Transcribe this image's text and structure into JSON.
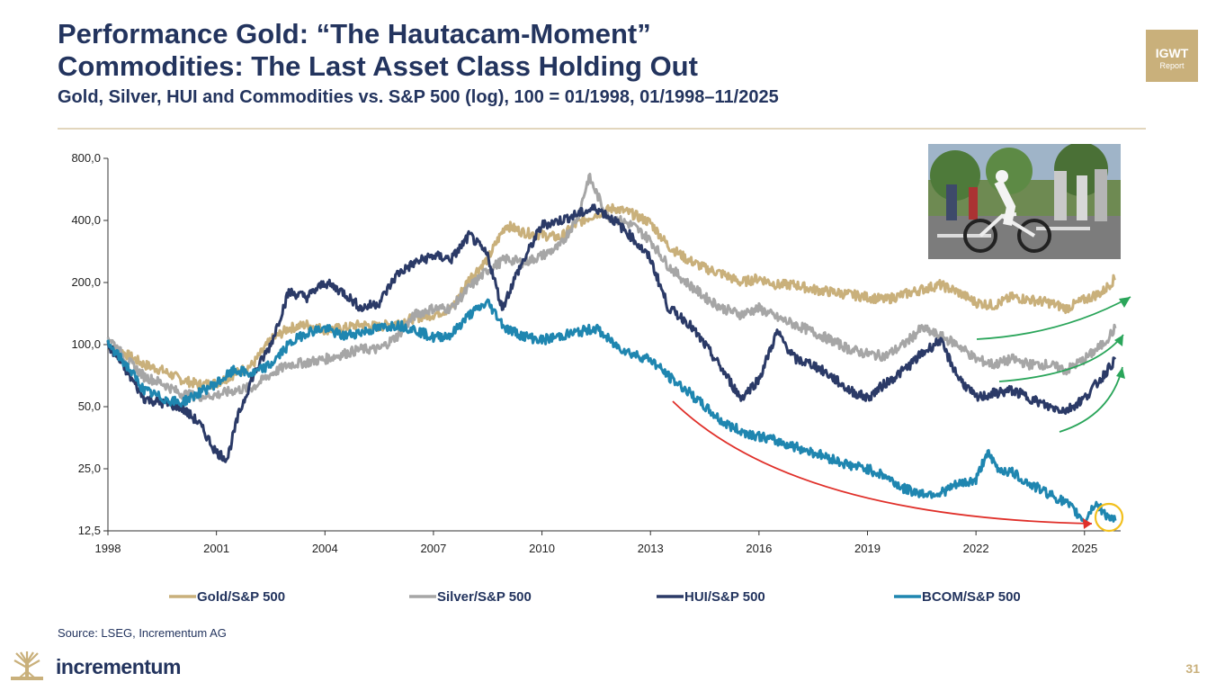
{
  "header": {
    "title_line1": "Performance Gold: “The Hautacam-Moment”",
    "title_line2": "Commodities: The Last Asset Class Holding Out",
    "subtitle": "Gold, Silver, HUI and Commodities vs. S&P 500 (log), 100 = 01/1998, 01/1998–11/2025"
  },
  "badge": {
    "line1": "IGWT",
    "line2": "Report"
  },
  "source": "Source: LSEG, Incrementum AG",
  "logo": {
    "text": "incrementum"
  },
  "page_number": "31",
  "colors": {
    "gold": "#c9b07b",
    "silver": "#a6a6a6",
    "hui": "#2b3a67",
    "bcom": "#1f86b0",
    "navy": "#23345e",
    "red": "#e0302a",
    "green": "#2aa55a",
    "highlight": "#f2c01e"
  },
  "chart_data": {
    "type": "line",
    "title": "Gold, Silver, HUI and Commodities vs. S&P 500 (log), 100 = 01/1998, 01/1998–11/2025",
    "yscale": "log",
    "ylim": [
      12.5,
      800
    ],
    "yticks": [
      12.5,
      25,
      50,
      100,
      200,
      400,
      800
    ],
    "ytick_labels": [
      "12,5",
      "25,0",
      "50,0",
      "100,0",
      "200,0",
      "400,0",
      "800,0"
    ],
    "xlim": [
      1998,
      2026
    ],
    "xticks": [
      1998,
      2001,
      2004,
      2007,
      2010,
      2013,
      2016,
      2019,
      2022,
      2025
    ],
    "xtick_labels": [
      "1998",
      "2001",
      "2004",
      "2007",
      "2010",
      "2013",
      "2016",
      "2019",
      "2022",
      "2025"
    ],
    "legend_position": "bottom",
    "series": [
      {
        "name": "Gold/S&P 500",
        "color": "#c9b07b",
        "x": [
          1998.0,
          1998.5,
          1999.0,
          1999.5,
          2000.0,
          2000.5,
          2001.0,
          2001.5,
          2002.0,
          2002.5,
          2003.0,
          2003.5,
          2004.0,
          2004.5,
          2005.0,
          2005.5,
          2006.0,
          2006.5,
          2007.0,
          2007.5,
          2008.0,
          2008.5,
          2009.0,
          2009.5,
          2010.0,
          2010.5,
          2011.0,
          2011.5,
          2012.0,
          2012.5,
          2013.0,
          2013.5,
          2014.0,
          2014.5,
          2015.0,
          2015.5,
          2016.0,
          2016.5,
          2017.0,
          2017.5,
          2018.0,
          2018.5,
          2019.0,
          2019.5,
          2020.0,
          2020.5,
          2021.0,
          2021.5,
          2022.0,
          2022.5,
          2023.0,
          2023.5,
          2024.0,
          2024.5,
          2025.0,
          2025.5,
          2025.85
        ],
        "y": [
          100,
          90,
          80,
          75,
          68,
          64,
          65,
          72,
          80,
          105,
          120,
          125,
          118,
          120,
          125,
          122,
          128,
          135,
          140,
          150,
          210,
          260,
          380,
          350,
          340,
          330,
          390,
          430,
          460,
          430,
          390,
          300,
          260,
          235,
          220,
          200,
          210,
          195,
          195,
          185,
          180,
          175,
          170,
          165,
          175,
          185,
          195,
          180,
          160,
          155,
          170,
          165,
          160,
          150,
          165,
          180,
          210
        ]
      },
      {
        "name": "Silver/S&P 500",
        "color": "#a6a6a6",
        "x": [
          1998.0,
          1998.5,
          1999.0,
          1999.5,
          2000.0,
          2000.5,
          2001.0,
          2001.5,
          2002.0,
          2002.5,
          2003.0,
          2003.5,
          2004.0,
          2004.5,
          2005.0,
          2005.5,
          2006.0,
          2006.5,
          2007.0,
          2007.5,
          2008.0,
          2008.5,
          2009.0,
          2009.5,
          2010.0,
          2010.5,
          2011.0,
          2011.3,
          2011.8,
          2012.5,
          2013.0,
          2013.5,
          2014.0,
          2014.5,
          2015.0,
          2015.5,
          2016.0,
          2016.5,
          2017.0,
          2017.5,
          2018.0,
          2018.5,
          2019.0,
          2019.5,
          2020.0,
          2020.5,
          2021.0,
          2021.5,
          2022.0,
          2022.5,
          2023.0,
          2023.5,
          2024.0,
          2024.5,
          2025.0,
          2025.5,
          2025.85
        ],
        "y": [
          110,
          85,
          70,
          65,
          58,
          56,
          57,
          60,
          62,
          72,
          80,
          82,
          85,
          90,
          95,
          95,
          110,
          140,
          150,
          150,
          190,
          230,
          260,
          250,
          270,
          300,
          420,
          650,
          420,
          380,
          320,
          240,
          200,
          170,
          150,
          140,
          150,
          135,
          125,
          115,
          105,
          95,
          90,
          88,
          100,
          120,
          110,
          100,
          85,
          80,
          85,
          80,
          80,
          75,
          85,
          100,
          120
        ]
      },
      {
        "name": "HUI/S&P 500",
        "color": "#2b3a67",
        "x": [
          1998.0,
          1998.5,
          1999.0,
          1999.5,
          2000.0,
          2000.5,
          2001.0,
          2001.3,
          2001.6,
          2002.0,
          2002.5,
          2003.0,
          2003.5,
          2004.0,
          2004.5,
          2005.0,
          2005.5,
          2006.0,
          2006.5,
          2007.0,
          2007.5,
          2008.0,
          2008.5,
          2008.9,
          2009.3,
          2010.0,
          2010.5,
          2011.0,
          2011.5,
          2012.0,
          2012.5,
          2013.0,
          2013.5,
          2014.0,
          2014.5,
          2015.0,
          2015.5,
          2016.0,
          2016.5,
          2017.0,
          2017.5,
          2018.0,
          2018.5,
          2019.0,
          2019.5,
          2020.0,
          2020.5,
          2021.0,
          2021.5,
          2022.0,
          2022.5,
          2023.0,
          2023.5,
          2024.0,
          2024.5,
          2025.0,
          2025.5,
          2025.85
        ],
        "y": [
          100,
          75,
          55,
          52,
          50,
          42,
          30,
          28,
          45,
          70,
          100,
          180,
          170,
          200,
          180,
          150,
          160,
          220,
          250,
          270,
          260,
          340,
          270,
          150,
          220,
          380,
          400,
          430,
          460,
          400,
          330,
          260,
          150,
          130,
          100,
          75,
          55,
          68,
          115,
          85,
          80,
          70,
          60,
          55,
          65,
          75,
          90,
          105,
          70,
          55,
          58,
          60,
          55,
          50,
          48,
          55,
          70,
          85
        ]
      },
      {
        "name": "BCOM/S&P 500",
        "color": "#1f86b0",
        "x": [
          1998.0,
          1998.5,
          1999.0,
          1999.5,
          2000.0,
          2000.5,
          2001.0,
          2001.5,
          2002.0,
          2002.5,
          2003.0,
          2003.5,
          2004.0,
          2004.5,
          2005.0,
          2005.5,
          2006.0,
          2006.5,
          2007.0,
          2007.5,
          2008.0,
          2008.5,
          2009.0,
          2009.5,
          2010.0,
          2010.5,
          2011.0,
          2011.5,
          2012.0,
          2012.5,
          2013.0,
          2013.5,
          2014.0,
          2014.5,
          2015.0,
          2015.5,
          2016.0,
          2016.5,
          2017.0,
          2017.5,
          2018.0,
          2018.5,
          2019.0,
          2019.5,
          2020.0,
          2020.5,
          2021.0,
          2021.5,
          2022.0,
          2022.3,
          2022.6,
          2023.0,
          2023.5,
          2024.0,
          2024.5,
          2025.0,
          2025.3,
          2025.6,
          2025.85
        ],
        "y": [
          100,
          80,
          60,
          55,
          52,
          58,
          65,
          75,
          72,
          80,
          100,
          115,
          120,
          110,
          115,
          120,
          125,
          118,
          108,
          112,
          140,
          160,
          120,
          110,
          105,
          110,
          115,
          120,
          100,
          90,
          85,
          70,
          60,
          50,
          42,
          38,
          36,
          34,
          32,
          30,
          28,
          26,
          25,
          23,
          20,
          19,
          19,
          21,
          22,
          30,
          25,
          24,
          21,
          19,
          17,
          14,
          17,
          15,
          14
        ]
      }
    ],
    "annotations": [
      {
        "type": "arrow",
        "color": "red",
        "description": "downtrend arrow 2013.5 to 2025.2"
      },
      {
        "type": "arrow",
        "color": "green",
        "description": "uptrend arrows at Gold, Silver, HUI"
      },
      {
        "type": "circle",
        "color": "yellow",
        "description": "highlight on BCOM/S&P 500 at 2025.6"
      }
    ]
  }
}
